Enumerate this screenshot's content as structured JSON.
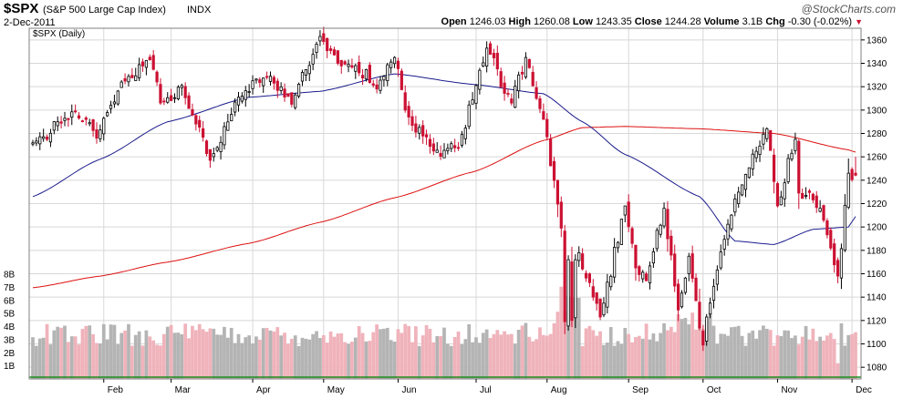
{
  "header": {
    "symbol": "$SPX",
    "name": "(S&P 500 Large Cap Index)",
    "exchange": "INDX",
    "brand": "@StockCharts.com",
    "date": "2-Dec-2011",
    "open_label": "Open",
    "open_value": "1246.03",
    "high_label": "High",
    "high_value": "1260.08",
    "low_label": "Low",
    "low_value": "1243.35",
    "close_label": "Close",
    "close_value": "1244.28",
    "volume_label": "Volume",
    "volume_value": "3.1B",
    "chg_label": "Chg",
    "chg_value": "-0.30 (-0.02%)"
  },
  "legend": "$SPX (Daily)",
  "colors": {
    "up_candle": "#000000",
    "down_candle": "#cc1133",
    "ma50": "#1a1a8c",
    "ma200": "#dd1111",
    "volume_up": "#b4b4b4",
    "volume_down": "#f0b3bb",
    "volume_baseline": "#1c8c1c",
    "grid": "#d8d8d8"
  },
  "chart_data": {
    "type": "candlestick",
    "title": "$SPX (Daily)",
    "y_axis": {
      "range": [
        1070,
        1370
      ],
      "ticks": [
        1080,
        1100,
        1120,
        1140,
        1160,
        1180,
        1200,
        1220,
        1240,
        1260,
        1280,
        1300,
        1320,
        1340,
        1360
      ]
    },
    "volume_axis": {
      "range": [
        0,
        8
      ],
      "ticks": [
        "1B",
        "2B",
        "3B",
        "4B",
        "5B",
        "6B",
        "7B",
        "8B"
      ]
    },
    "x_axis": {
      "months": [
        "Feb",
        "Mar",
        "Apr",
        "May",
        "Jun",
        "Jul",
        "Aug",
        "Sep",
        "Oct",
        "Nov",
        "Dec"
      ]
    },
    "anchors": [
      {
        "date": "2011-01-03",
        "close": 1272
      },
      {
        "date": "2011-01-14",
        "close": 1293
      },
      {
        "date": "2011-01-25",
        "close": 1292
      },
      {
        "date": "2011-01-28",
        "close": 1276
      },
      {
        "date": "2011-02-08",
        "close": 1324
      },
      {
        "date": "2011-02-18",
        "close": 1343
      },
      {
        "date": "2011-02-24",
        "close": 1306
      },
      {
        "date": "2011-03-04",
        "close": 1321
      },
      {
        "date": "2011-03-16",
        "close": 1257
      },
      {
        "date": "2011-03-28",
        "close": 1311
      },
      {
        "date": "2011-04-08",
        "close": 1329
      },
      {
        "date": "2011-04-18",
        "close": 1305
      },
      {
        "date": "2011-04-29",
        "close": 1363
      },
      {
        "date": "2011-05-06",
        "close": 1340
      },
      {
        "date": "2011-05-13",
        "close": 1338
      },
      {
        "date": "2011-05-23",
        "close": 1318
      },
      {
        "date": "2011-05-31",
        "close": 1345
      },
      {
        "date": "2011-06-03",
        "close": 1300
      },
      {
        "date": "2011-06-15",
        "close": 1265
      },
      {
        "date": "2011-06-24",
        "close": 1268
      },
      {
        "date": "2011-07-07",
        "close": 1353
      },
      {
        "date": "2011-07-18",
        "close": 1306
      },
      {
        "date": "2011-07-22",
        "close": 1345
      },
      {
        "date": "2011-07-29",
        "close": 1292
      },
      {
        "date": "2011-08-05",
        "close": 1199
      },
      {
        "date": "2011-08-08",
        "close": 1119
      },
      {
        "date": "2011-08-09",
        "close": 1172
      },
      {
        "date": "2011-08-10",
        "close": 1120
      },
      {
        "date": "2011-08-11",
        "close": 1172
      },
      {
        "date": "2011-08-12",
        "close": 1178
      },
      {
        "date": "2011-08-18",
        "close": 1140
      },
      {
        "date": "2011-08-22",
        "close": 1123
      },
      {
        "date": "2011-08-31",
        "close": 1218
      },
      {
        "date": "2011-09-06",
        "close": 1165
      },
      {
        "date": "2011-09-09",
        "close": 1154
      },
      {
        "date": "2011-09-16",
        "close": 1216
      },
      {
        "date": "2011-09-22",
        "close": 1129
      },
      {
        "date": "2011-09-27",
        "close": 1175
      },
      {
        "date": "2011-10-03",
        "close": 1099
      },
      {
        "date": "2011-10-04",
        "close": 1123
      },
      {
        "date": "2011-10-14",
        "close": 1224
      },
      {
        "date": "2011-10-27",
        "close": 1284
      },
      {
        "date": "2011-11-01",
        "close": 1218
      },
      {
        "date": "2011-11-08",
        "close": 1275
      },
      {
        "date": "2011-11-09",
        "close": 1229
      },
      {
        "date": "2011-11-17",
        "close": 1216
      },
      {
        "date": "2011-11-25",
        "close": 1158
      },
      {
        "date": "2011-11-30",
        "close": 1246
      },
      {
        "date": "2011-12-02",
        "close": 1244
      }
    ],
    "last_bar": {
      "date": "2011-12-02",
      "open": 1246.03,
      "high": 1260.08,
      "low": 1243.35,
      "close": 1244.28
    },
    "moving_averages": [
      {
        "name": "MA 50",
        "points": [
          {
            "date": "2011-01-03",
            "value": 1226
          },
          {
            "date": "2011-01-31",
            "value": 1258
          },
          {
            "date": "2011-02-28",
            "value": 1290
          },
          {
            "date": "2011-03-31",
            "value": 1311
          },
          {
            "date": "2011-04-29",
            "value": 1316
          },
          {
            "date": "2011-05-31",
            "value": 1331
          },
          {
            "date": "2011-06-30",
            "value": 1322
          },
          {
            "date": "2011-07-29",
            "value": 1314
          },
          {
            "date": "2011-08-15",
            "value": 1290
          },
          {
            "date": "2011-08-31",
            "value": 1262
          },
          {
            "date": "2011-09-30",
            "value": 1226
          },
          {
            "date": "2011-10-14",
            "value": 1188
          },
          {
            "date": "2011-10-31",
            "value": 1185
          },
          {
            "date": "2011-11-15",
            "value": 1198
          },
          {
            "date": "2011-11-30",
            "value": 1200
          },
          {
            "date": "2011-12-02",
            "value": 1209
          }
        ]
      },
      {
        "name": "MA 200",
        "points": [
          {
            "date": "2011-01-03",
            "value": 1148
          },
          {
            "date": "2011-01-31",
            "value": 1158
          },
          {
            "date": "2011-02-28",
            "value": 1170
          },
          {
            "date": "2011-03-31",
            "value": 1186
          },
          {
            "date": "2011-04-29",
            "value": 1204
          },
          {
            "date": "2011-05-31",
            "value": 1225
          },
          {
            "date": "2011-06-30",
            "value": 1247
          },
          {
            "date": "2011-07-29",
            "value": 1274
          },
          {
            "date": "2011-08-15",
            "value": 1285
          },
          {
            "date": "2011-08-31",
            "value": 1286
          },
          {
            "date": "2011-09-30",
            "value": 1284
          },
          {
            "date": "2011-10-31",
            "value": 1280
          },
          {
            "date": "2011-11-30",
            "value": 1266
          },
          {
            "date": "2011-12-02",
            "value": 1264
          }
        ]
      }
    ],
    "volume_range_billions": [
      2.5,
      5.5
    ]
  }
}
